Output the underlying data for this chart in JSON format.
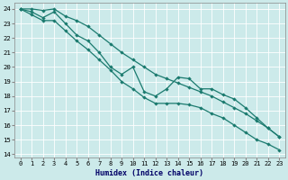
{
  "xlabel": "Humidex (Indice chaleur)",
  "background_color": "#cceaea",
  "grid_color": "#ffffff",
  "line_color": "#1a7a6e",
  "xlim": [
    -0.5,
    23.5
  ],
  "ylim": [
    13.8,
    24.4
  ],
  "yticks": [
    14,
    15,
    16,
    17,
    18,
    19,
    20,
    21,
    22,
    23,
    24
  ],
  "xticks": [
    0,
    1,
    2,
    3,
    4,
    5,
    6,
    7,
    8,
    9,
    10,
    11,
    12,
    13,
    14,
    15,
    16,
    17,
    18,
    19,
    20,
    21,
    22,
    23
  ],
  "line_top_x": [
    0,
    1,
    2,
    3,
    4,
    5,
    6,
    7,
    8,
    9,
    10,
    11,
    12,
    13,
    14,
    15,
    16,
    17,
    18,
    19,
    20,
    21,
    22,
    23
  ],
  "line_top_y": [
    24.0,
    24.0,
    23.9,
    24.0,
    23.5,
    23.2,
    22.8,
    22.2,
    21.6,
    21.0,
    20.5,
    20.0,
    19.5,
    19.2,
    18.9,
    18.6,
    18.3,
    18.0,
    17.6,
    17.2,
    16.8,
    16.3,
    15.8,
    15.2
  ],
  "line_mid_x": [
    0,
    1,
    2,
    3,
    4,
    5,
    6,
    7,
    8,
    9,
    10,
    11,
    12,
    13,
    14,
    15,
    16,
    17,
    18,
    19,
    20,
    21,
    22,
    23
  ],
  "line_mid_y": [
    24.0,
    23.8,
    23.4,
    23.8,
    23.0,
    22.2,
    21.8,
    21.0,
    20.0,
    19.5,
    20.0,
    18.3,
    18.0,
    18.5,
    19.3,
    19.2,
    18.5,
    18.5,
    18.1,
    17.8,
    17.2,
    16.5,
    15.8,
    15.2
  ],
  "line_bot_x": [
    0,
    1,
    2,
    3,
    4,
    5,
    6,
    7,
    8,
    9,
    10,
    11,
    12,
    13,
    14,
    15,
    16,
    17,
    18,
    19,
    20,
    21,
    22,
    23
  ],
  "line_bot_y": [
    24.0,
    23.6,
    23.2,
    23.2,
    22.5,
    21.8,
    21.2,
    20.5,
    19.8,
    19.0,
    18.5,
    17.9,
    17.5,
    17.5,
    17.5,
    17.4,
    17.2,
    16.8,
    16.5,
    16.0,
    15.5,
    15.0,
    14.7,
    14.3
  ]
}
